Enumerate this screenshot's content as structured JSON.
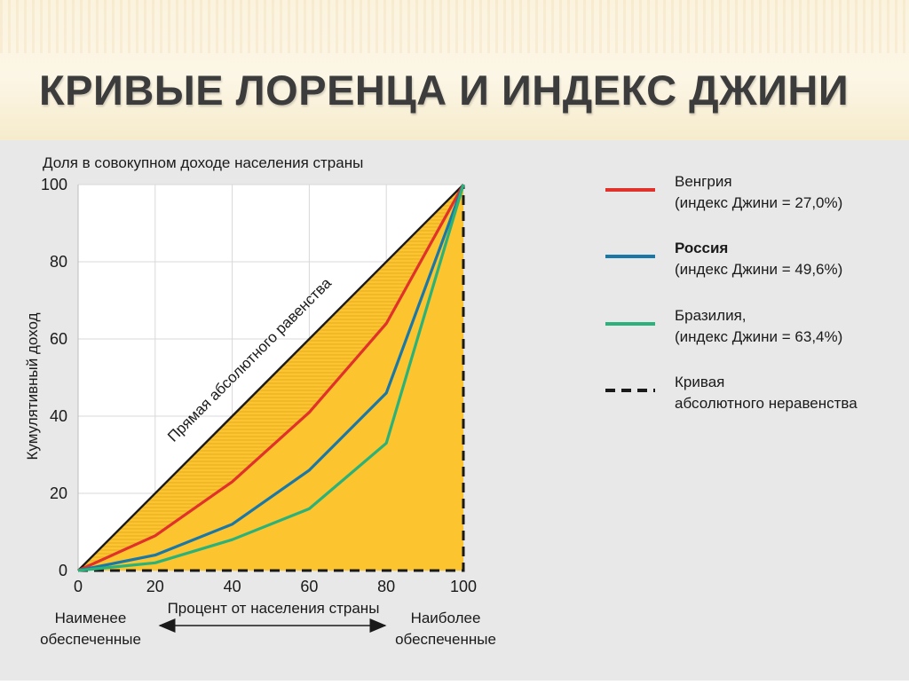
{
  "slide": {
    "title": "КРИВЫЕ ЛОРЕНЦА И ИНДЕКС ДЖИНИ"
  },
  "chart_data": {
    "type": "line",
    "title": "Доля в совокупном доходе населения страны",
    "ylabel": "Кумулятивный доход",
    "xlabel": "Процент от населения страны",
    "xlim": [
      0,
      100
    ],
    "ylim": [
      0,
      100
    ],
    "x_ticks": [
      0,
      20,
      40,
      60,
      80,
      100
    ],
    "y_ticks": [
      0,
      20,
      40,
      60,
      80,
      100
    ],
    "grid": true,
    "equality_label": "Прямая абсолютного равенства",
    "series": [
      {
        "name": "Венгрия",
        "legend_line1": "Венгрия",
        "legend_line2": "(индекс Джини = 27,0%)",
        "bold": false,
        "color": "#e0312b",
        "x": [
          0,
          20,
          40,
          60,
          80,
          100
        ],
        "values": [
          0,
          9,
          23,
          41,
          64,
          100
        ]
      },
      {
        "name": "Россия",
        "legend_line1": "Россия",
        "legend_line2": "(индекс Джини = 49,6%)",
        "bold": true,
        "color": "#1a78a8",
        "x": [
          0,
          20,
          40,
          60,
          80,
          100
        ],
        "values": [
          0,
          4,
          12,
          26,
          46,
          100
        ]
      },
      {
        "name": "Бразилия",
        "legend_line1": "Бразилия,",
        "legend_line2": "(индекс Джини = 63,4%)",
        "bold": false,
        "color": "#2bb27a",
        "x": [
          0,
          20,
          40,
          60,
          80,
          100
        ],
        "values": [
          0,
          2,
          8,
          16,
          33,
          100
        ]
      }
    ],
    "inequality": {
      "legend_line1": "Кривая",
      "legend_line2": "абсолютного неравенства",
      "color": "#1a1a1a",
      "x": [
        0,
        100,
        100
      ],
      "values": [
        0,
        0,
        100
      ]
    },
    "bottom_arrow": {
      "left_line1": "Наименее",
      "left_line2": "обеспеченные",
      "right_line1": "Наиболее",
      "right_line2": "обеспеченные"
    },
    "colors": {
      "fill": "#fcc42e",
      "plot_background": "#ffffff",
      "grid": "#d8d8d8"
    }
  }
}
